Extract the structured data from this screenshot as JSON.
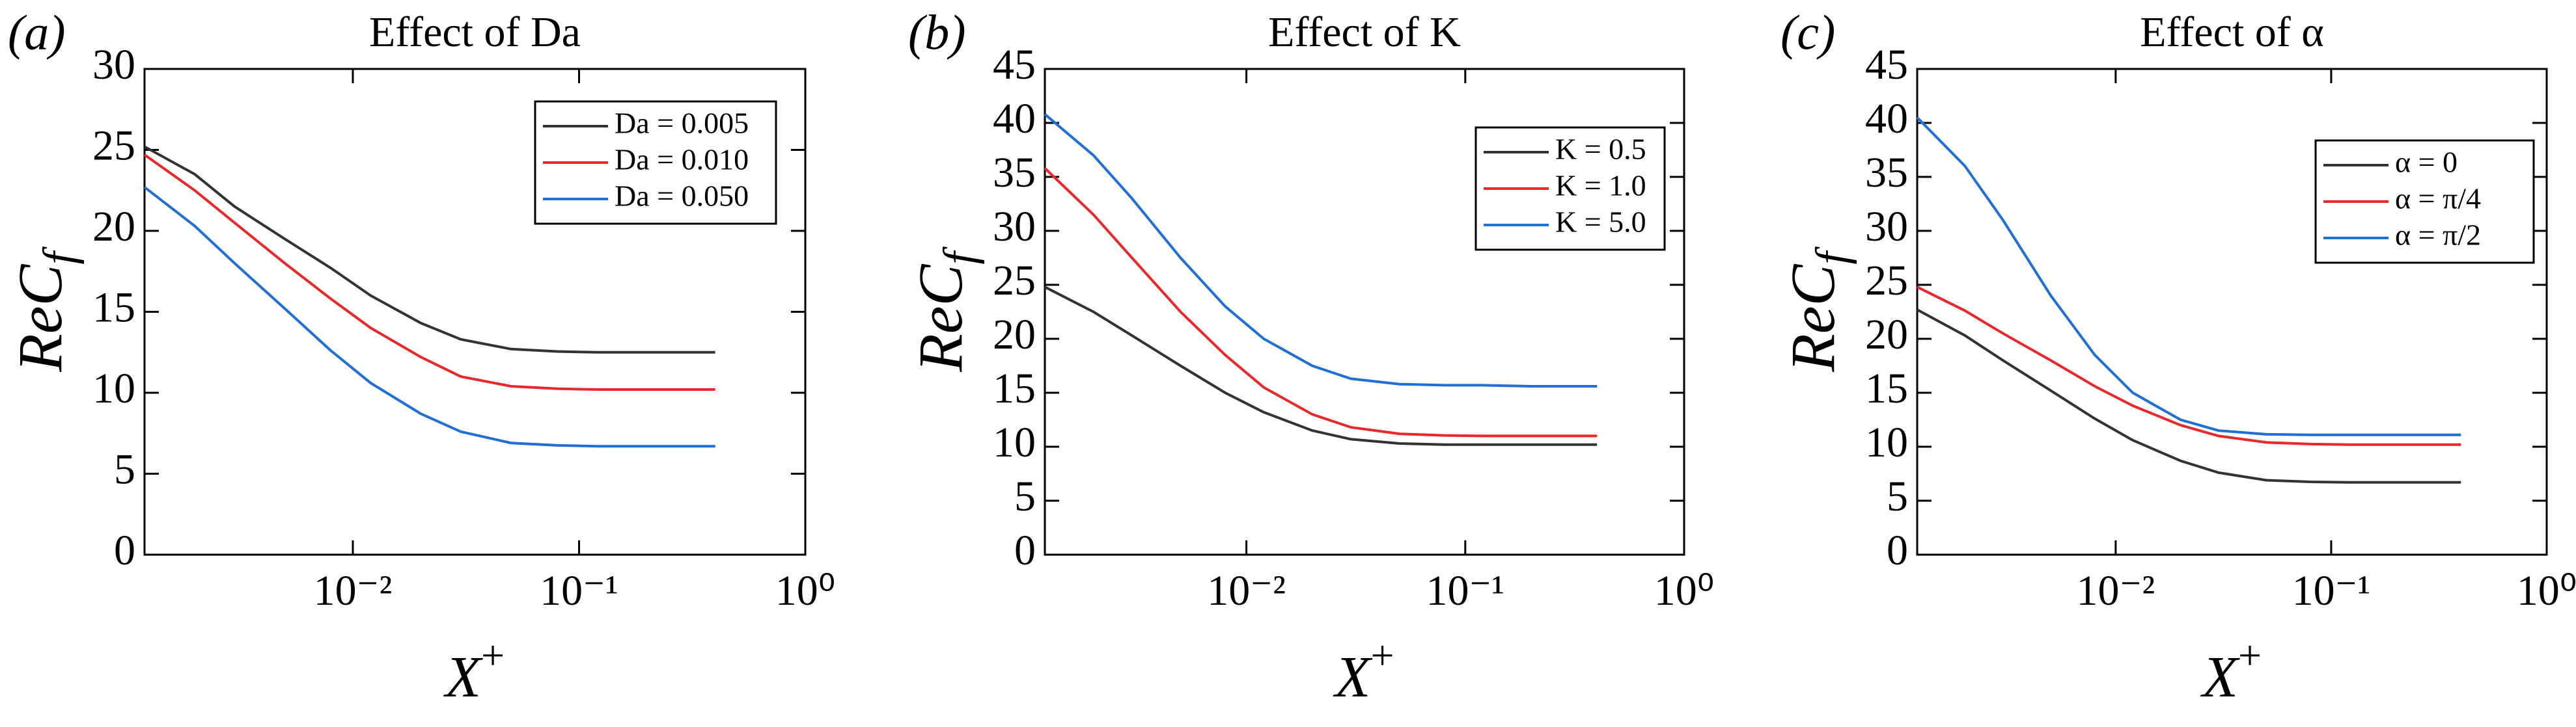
{
  "chart_data": [
    {
      "type": "line",
      "panel_label": "(a)",
      "title": "Effect of Da",
      "x_label": {
        "text": "X",
        "superscript": "+"
      },
      "y_label": {
        "text": "ReC",
        "subscript": "f"
      },
      "x": [
        0.0012,
        0.002,
        0.003,
        0.005,
        0.008,
        0.012,
        0.02,
        0.03,
        0.05,
        0.08,
        0.12,
        0.2,
        0.4
      ],
      "series": [
        {
          "name": "Da = 0.005",
          "color": "#333333",
          "values": [
            25.2,
            23.5,
            21.5,
            19.5,
            17.7,
            16.0,
            14.3,
            13.3,
            12.7,
            12.55,
            12.5,
            12.5,
            12.5
          ]
        },
        {
          "name": "Da = 0.010",
          "color": "#e8282b",
          "values": [
            24.7,
            22.5,
            20.5,
            18.0,
            15.8,
            14.0,
            12.2,
            11.0,
            10.4,
            10.25,
            10.2,
            10.2,
            10.2
          ]
        },
        {
          "name": "Da = 0.050",
          "color": "#1f6fd6",
          "values": [
            22.7,
            20.3,
            18.0,
            15.2,
            12.6,
            10.6,
            8.7,
            7.6,
            6.9,
            6.75,
            6.7,
            6.7,
            6.7
          ]
        }
      ],
      "xlim": [
        0.0012,
        1
      ],
      "log_x": true,
      "xticks": [
        {
          "value": 0.01,
          "label": "10⁻²"
        },
        {
          "value": 0.1,
          "label": "10⁻¹"
        },
        {
          "value": 1,
          "label": "10⁰"
        }
      ],
      "ylim": [
        0,
        30
      ],
      "yticks": [
        0,
        5,
        10,
        15,
        20,
        25,
        30
      ],
      "legend": "upper right"
    },
    {
      "type": "line",
      "panel_label": "(b)",
      "title": "Effect of K",
      "x_label": {
        "text": "X",
        "superscript": "+"
      },
      "y_label": {
        "text": "ReC",
        "subscript": "f"
      },
      "x": [
        0.0012,
        0.002,
        0.003,
        0.005,
        0.008,
        0.012,
        0.02,
        0.03,
        0.05,
        0.08,
        0.12,
        0.2,
        0.4
      ],
      "series": [
        {
          "name": "K = 0.5",
          "color": "#333333",
          "values": [
            24.8,
            22.5,
            20.3,
            17.5,
            15.0,
            13.2,
            11.5,
            10.7,
            10.3,
            10.2,
            10.2,
            10.2,
            10.2
          ]
        },
        {
          "name": "K = 1.0",
          "color": "#e8282b",
          "values": [
            35.8,
            31.5,
            27.5,
            22.5,
            18.5,
            15.5,
            13.0,
            11.8,
            11.2,
            11.05,
            11.0,
            11.0,
            11.0
          ]
        },
        {
          "name": "K = 5.0",
          "color": "#1f6fd6",
          "values": [
            40.8,
            37,
            33,
            27.5,
            23,
            20,
            17.5,
            16.3,
            15.8,
            15.7,
            15.7,
            15.6,
            15.6
          ]
        }
      ],
      "xlim": [
        0.0012,
        1
      ],
      "log_x": true,
      "xticks": [
        {
          "value": 0.01,
          "label": "10⁻²"
        },
        {
          "value": 0.1,
          "label": "10⁻¹"
        },
        {
          "value": 1,
          "label": "10⁰"
        }
      ],
      "ylim": [
        0,
        45
      ],
      "yticks": [
        0,
        5,
        10,
        15,
        20,
        25,
        30,
        35,
        40,
        45
      ],
      "legend": "upper right"
    },
    {
      "type": "line",
      "panel_label": "(c)",
      "title": "Effect of α",
      "x_label": {
        "text": "X",
        "superscript": "+"
      },
      "y_label": {
        "text": "ReC",
        "subscript": "f"
      },
      "x": [
        0.0012,
        0.002,
        0.003,
        0.005,
        0.008,
        0.012,
        0.02,
        0.03,
        0.05,
        0.08,
        0.12,
        0.2,
        0.4
      ],
      "series": [
        {
          "name": "α = 0",
          "color": "#333333",
          "values": [
            22.7,
            20.3,
            18.0,
            15.2,
            12.6,
            10.6,
            8.7,
            7.6,
            6.9,
            6.75,
            6.7,
            6.7,
            6.7
          ]
        },
        {
          "name": "α = π/4",
          "color": "#e8282b",
          "values": [
            24.8,
            22.6,
            20.5,
            18.0,
            15.6,
            13.8,
            12.0,
            11.0,
            10.4,
            10.25,
            10.2,
            10.2,
            10.2
          ]
        },
        {
          "name": "α = π/2",
          "color": "#1f6fd6",
          "values": [
            40.5,
            36,
            31,
            24,
            18.5,
            15,
            12.5,
            11.5,
            11.15,
            11.1,
            11.1,
            11.1,
            11.1
          ]
        }
      ],
      "xlim": [
        0.0012,
        1
      ],
      "log_x": true,
      "xticks": [
        {
          "value": 0.01,
          "label": "10⁻²"
        },
        {
          "value": 0.1,
          "label": "10⁻¹"
        },
        {
          "value": 1,
          "label": "10⁰"
        }
      ],
      "ylim": [
        0,
        45
      ],
      "yticks": [
        0,
        5,
        10,
        15,
        20,
        25,
        30,
        35,
        40,
        45
      ],
      "legend": "upper right"
    }
  ]
}
